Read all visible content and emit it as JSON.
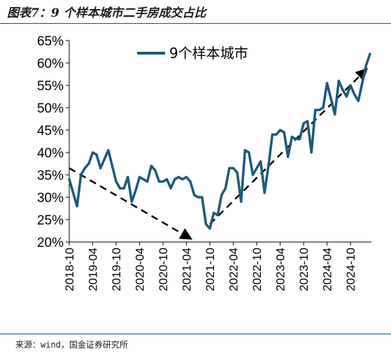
{
  "figure": {
    "title": "图表7：9 个样本城市二手房成交占比",
    "source": "来源：wind，国金证券研究所"
  },
  "colors": {
    "series": "#1b5a7a",
    "arrow": "#000000",
    "rule": "#1f4e79"
  },
  "chart_data": {
    "type": "line",
    "title": "",
    "xlabel": "",
    "ylabel": "",
    "ylim": [
      20,
      65
    ],
    "y_ticks": [
      "20%",
      "25%",
      "30%",
      "35%",
      "40%",
      "45%",
      "50%",
      "55%",
      "60%",
      "65%"
    ],
    "x_ticks": [
      "2018-10",
      "2019-04",
      "2019-10",
      "2020-04",
      "2020-10",
      "2021-04",
      "2021-10",
      "2022-04",
      "2022-10",
      "2023-04",
      "2023-10",
      "2024-04",
      "2024-10"
    ],
    "grid": false,
    "legend_position": "top-center",
    "series": [
      {
        "name": "9个样本城市",
        "x": [
          "2018-10",
          "2018-11",
          "2018-12",
          "2019-01",
          "2019-02",
          "2019-03",
          "2019-04",
          "2019-05",
          "2019-06",
          "2019-07",
          "2019-08",
          "2019-09",
          "2019-10",
          "2019-11",
          "2019-12",
          "2020-01",
          "2020-02",
          "2020-03",
          "2020-04",
          "2020-05",
          "2020-06",
          "2020-07",
          "2020-08",
          "2020-09",
          "2020-10",
          "2020-11",
          "2020-12",
          "2021-01",
          "2021-02",
          "2021-03",
          "2021-04",
          "2021-05",
          "2021-06",
          "2021-07",
          "2021-08",
          "2021-09",
          "2021-10",
          "2021-11",
          "2021-12",
          "2022-01",
          "2022-02",
          "2022-03",
          "2022-04",
          "2022-05",
          "2022-06",
          "2022-07",
          "2022-08",
          "2022-09",
          "2022-10",
          "2022-11",
          "2022-12",
          "2023-01",
          "2023-02",
          "2023-03",
          "2023-04",
          "2023-05",
          "2023-06",
          "2023-07",
          "2023-08",
          "2023-09",
          "2023-10",
          "2023-11",
          "2023-12",
          "2024-01",
          "2024-02",
          "2024-03",
          "2024-04",
          "2024-05",
          "2024-06",
          "2024-07",
          "2024-08",
          "2024-09",
          "2024-10",
          "2024-11",
          "2024-12",
          "2025-01",
          "2025-02",
          "2025-03"
        ],
        "values": [
          34.0,
          31.0,
          28.0,
          35.0,
          36.5,
          37.5,
          40.0,
          39.5,
          36.5,
          38.5,
          40.5,
          37.0,
          33.5,
          32.0,
          32.0,
          34.5,
          29.0,
          31.5,
          34.5,
          34.0,
          33.5,
          37.0,
          36.0,
          33.5,
          33.5,
          34.0,
          32.0,
          34.0,
          34.5,
          34.0,
          34.5,
          33.5,
          30.5,
          30.0,
          30.0,
          24.0,
          23.0,
          26.5,
          26.0,
          30.5,
          32.0,
          36.5,
          36.5,
          35.5,
          29.0,
          40.5,
          40.0,
          35.0,
          36.5,
          38.0,
          31.0,
          37.0,
          44.0,
          44.0,
          45.0,
          44.5,
          39.0,
          43.5,
          43.0,
          43.0,
          46.5,
          47.0,
          40.0,
          49.5,
          49.5,
          50.0,
          55.5,
          52.0,
          48.5,
          56.0,
          54.0,
          52.5,
          55.0,
          53.0,
          51.5,
          55.5,
          59.5,
          62.0
        ]
      }
    ],
    "trend_arrows": [
      {
        "from": {
          "x": "2018-10",
          "y": 36.5
        },
        "to": {
          "x": "2021-05",
          "y": 20.8
        }
      },
      {
        "from": {
          "x": "2021-10",
          "y": 24.0
        },
        "to": {
          "x": "2025-02",
          "y": 58.5
        }
      }
    ]
  }
}
